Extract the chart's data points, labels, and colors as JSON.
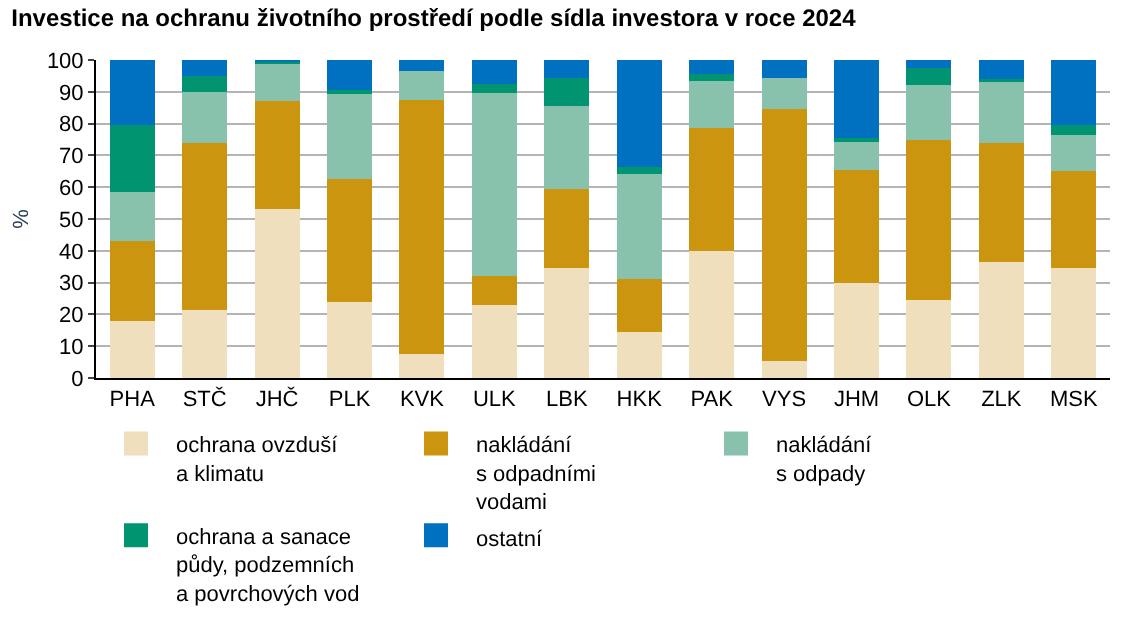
{
  "chart_data": {
    "type": "bar",
    "title": "Investice na ochranu životního prostředí podle sídla investora v roce 2024",
    "ylabel": "%",
    "stacked": true,
    "categories": [
      "PHA",
      "STČ",
      "JHČ",
      "PLK",
      "KVK",
      "ULK",
      "LBK",
      "HKK",
      "PAK",
      "VYS",
      "JHM",
      "OLK",
      "ZLK",
      "MSK"
    ],
    "series": [
      {
        "name": "ochrana ovzduší\na klimatu",
        "color": "#f0dfbd",
        "values": [
          18,
          21.5,
          53,
          24,
          7.5,
          23,
          34.5,
          14.5,
          40,
          5.5,
          30,
          24.5,
          36.5,
          34.5
        ]
      },
      {
        "name": "nakládání\ns odpadními\nvodami",
        "color": "#cc9510",
        "values": [
          25,
          52.5,
          34,
          38.5,
          80,
          9,
          25,
          16.5,
          38.5,
          79,
          35.5,
          50.5,
          37.5,
          30.5
        ]
      },
      {
        "name": "nakládání\ns odpady",
        "color": "#88c2ad",
        "values": [
          15.5,
          16,
          12,
          27,
          9,
          57.5,
          26,
          33,
          15,
          10,
          9,
          17,
          19.5,
          11.5
        ]
      },
      {
        "name": "ochrana a sanace\npůdy, podzemních\na povrchových vod",
        "color": "#009570",
        "values": [
          21,
          5,
          0.5,
          1,
          0,
          3,
          9,
          2.5,
          2,
          0,
          1,
          5.5,
          0.5,
          3
        ]
      },
      {
        "name": "ostatní",
        "color": "#0070c0",
        "values": [
          20.5,
          5,
          0.5,
          9.5,
          3.5,
          7.5,
          5.5,
          33.5,
          4.5,
          5.5,
          24.5,
          2.5,
          6,
          20.5
        ]
      }
    ],
    "ylim": [
      0,
      100
    ],
    "yticks": [
      0,
      10,
      20,
      30,
      40,
      50,
      60,
      70,
      80,
      90,
      100
    ],
    "grid": "y",
    "legend": "bottom"
  }
}
